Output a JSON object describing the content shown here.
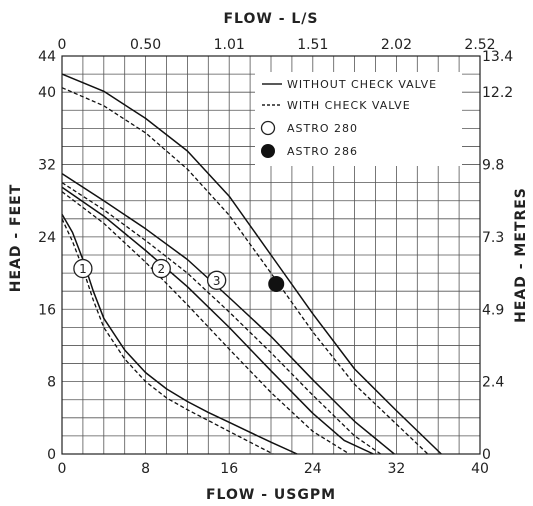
{
  "chart_data": {
    "type": "line",
    "titles": {
      "top": "FLOW - L/S",
      "bottom": "FLOW - USGPM",
      "left": "HEAD - FEET",
      "right": "HEAD - METRES"
    },
    "x_usgpm": {
      "min": 0,
      "max": 40,
      "ticks": [
        "0",
        "8",
        "16",
        "24",
        "32",
        "40"
      ],
      "tick_values": [
        0,
        8,
        16,
        24,
        32,
        40
      ]
    },
    "x_ls": {
      "ticks": [
        "0",
        "0.50",
        "1.01",
        "1.51",
        "2.02",
        "2.52"
      ],
      "tick_values": [
        0,
        8,
        16,
        24,
        32,
        40
      ]
    },
    "y_feet": {
      "min": 0,
      "max": 44,
      "ticks": [
        "0",
        "8",
        "16",
        "24",
        "32",
        "40",
        "44"
      ],
      "tick_values": [
        0,
        8,
        16,
        24,
        32,
        40,
        44
      ]
    },
    "y_metres": {
      "ticks": [
        "0",
        "2.4",
        "4.9",
        "7.3",
        "9.8",
        "12.2",
        "13.4"
      ],
      "tick_values": [
        0,
        8,
        16,
        24,
        32,
        40,
        44
      ]
    },
    "grid": true,
    "legend": {
      "position": "top-right",
      "items": [
        {
          "label": "WITHOUT CHECK VALVE",
          "symbol": "solid-line"
        },
        {
          "label": "WITH CHECK VALVE",
          "symbol": "dashed-line"
        },
        {
          "label": "ASTRO 280",
          "symbol": "open-circle"
        },
        {
          "label": "ASTRO 286",
          "symbol": "filled-circle"
        }
      ]
    },
    "series": [
      {
        "curve": "1",
        "check_valve": false,
        "x": [
          0,
          1,
          2,
          3,
          4,
          6,
          8,
          10,
          12,
          14,
          16,
          18,
          20,
          22.5
        ],
        "y": [
          26.5,
          24.5,
          21.5,
          18,
          15,
          11.5,
          9,
          7.2,
          5.8,
          4.6,
          3.5,
          2.4,
          1.3,
          0
        ]
      },
      {
        "curve": "1",
        "check_valve": true,
        "x": [
          0,
          1,
          2,
          3,
          4,
          6,
          8,
          10,
          12,
          14,
          16,
          18,
          20.2
        ],
        "y": [
          26,
          23.5,
          20.5,
          17,
          14,
          10.5,
          8,
          6.2,
          4.9,
          3.7,
          2.5,
          1.3,
          0
        ]
      },
      {
        "curve": "2",
        "check_valve": false,
        "x": [
          0,
          4,
          8,
          12,
          16,
          20,
          24,
          27,
          29.8
        ],
        "y": [
          29.5,
          26.3,
          22.5,
          18.5,
          14,
          9.2,
          4.5,
          1.5,
          0
        ]
      },
      {
        "curve": "2",
        "check_valve": true,
        "x": [
          0,
          4,
          8,
          12,
          16,
          20,
          24,
          27.5
        ],
        "y": [
          29,
          25.5,
          21.2,
          16.5,
          11.6,
          6.8,
          2.5,
          0
        ]
      },
      {
        "curve": "3",
        "check_valve": false,
        "x": [
          0,
          4,
          8,
          12,
          16,
          20,
          24,
          28,
          31.8
        ],
        "y": [
          31,
          28,
          24.9,
          21.5,
          17.3,
          13,
          8.2,
          3.6,
          0
        ]
      },
      {
        "curve": "3",
        "check_valve": true,
        "x": [
          0,
          4,
          8,
          12,
          16,
          20,
          24,
          28,
          30.5
        ],
        "y": [
          30,
          27,
          23.6,
          20,
          15.7,
          11.2,
          6.5,
          2,
          0
        ]
      },
      {
        "curve": "4",
        "check_valve": false,
        "x": [
          0,
          4,
          8,
          12,
          16,
          20,
          24,
          28,
          32,
          36.3
        ],
        "y": [
          42,
          40.1,
          37.1,
          33.5,
          28.5,
          22,
          15.5,
          9.4,
          4.8,
          0
        ]
      },
      {
        "curve": "4",
        "check_valve": true,
        "x": [
          0,
          4,
          8,
          12,
          16,
          20,
          24,
          28,
          32,
          35
        ],
        "y": [
          40.5,
          38.5,
          35.5,
          31.5,
          26.4,
          20,
          13.5,
          7.7,
          3.3,
          0
        ]
      }
    ],
    "markers": [
      {
        "label": "1",
        "type": "open-circle",
        "x": 2,
        "y": 20.5
      },
      {
        "label": "2",
        "type": "open-circle",
        "x": 9.5,
        "y": 20.5
      },
      {
        "label": "3",
        "type": "open-circle",
        "x": 14.8,
        "y": 19.2
      },
      {
        "label": "",
        "type": "filled-circle",
        "x": 20.5,
        "y": 18.8
      }
    ]
  }
}
